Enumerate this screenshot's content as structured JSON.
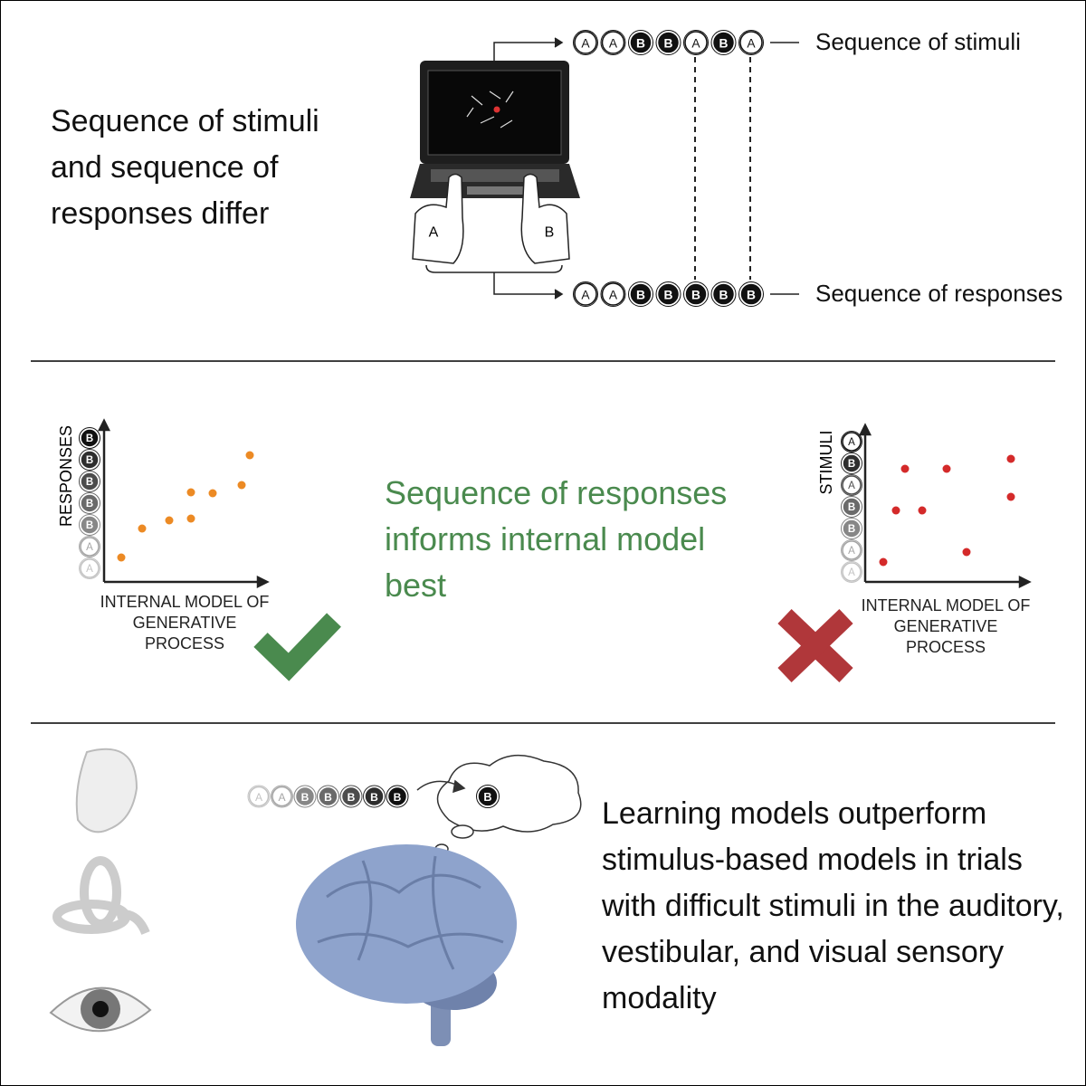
{
  "top": {
    "text": "Sequence of stimuli and sequence of responses differ",
    "stimuli_label": "Sequence of stimuli",
    "responses_label": "Sequence of responses",
    "stimuli": [
      "A",
      "A",
      "B",
      "B",
      "A",
      "B",
      "A"
    ],
    "responses": [
      "A",
      "A",
      "B",
      "B",
      "B",
      "B",
      "B"
    ],
    "hands": [
      "A",
      "B"
    ]
  },
  "middle": {
    "text": "Sequence of responses informs internal model best",
    "left_plot": {
      "y_label": "RESPONSES",
      "x_label": "INTERNAL MODEL OF GENERATIVE PROCESS",
      "y_symbols": [
        "A",
        "A",
        "B",
        "B",
        "B",
        "B",
        "B"
      ]
    },
    "right_plot": {
      "y_label": "STIMULI",
      "x_label": "INTERNAL MODEL OF GENERATIVE PROCESS",
      "y_symbols": [
        "A",
        "A",
        "B",
        "B",
        "A",
        "B",
        "A"
      ]
    }
  },
  "bottom": {
    "sequence": [
      "A",
      "A",
      "B",
      "B",
      "B",
      "B",
      "B"
    ],
    "prediction": "B",
    "text": "Learning models outperform stimulus-based models in trials with difficult stimuli in the auditory, vestibular, and visual sensory modality"
  }
}
